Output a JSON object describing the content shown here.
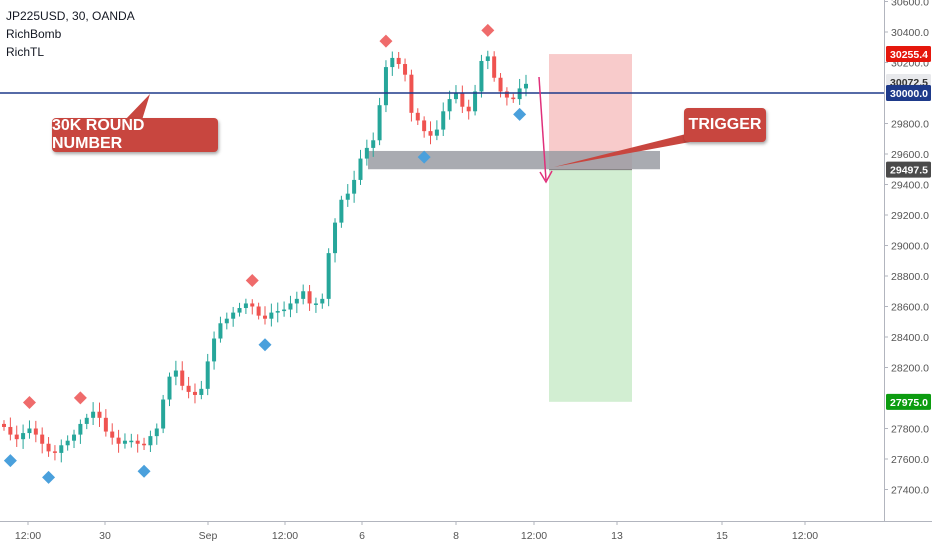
{
  "header": {
    "symbol_line": "JP225USD, 30, OANDA",
    "indicator_1": "RichBomb",
    "indicator_2": "RichTL"
  },
  "annotations": {
    "round_number_label": "30K ROUND NUMBER",
    "trigger_label": "TRIGGER"
  },
  "colors": {
    "candle_up": "#26a69a",
    "candle_down": "#ef5350",
    "bomb_up": "#ef6b6b",
    "bomb_down": "#4aa0dc",
    "horizontal_line": "#1e3a8a",
    "support_zone": "#9a9ca3",
    "stop_zone": "#f7c5c5",
    "target_zone": "#cdeccd",
    "callout_bg": "#c8463f",
    "arrow": "#e0307a",
    "price_label_red": "#e5170d",
    "price_label_green": "#0c9c10",
    "price_label_navy": "#1e3a8a",
    "price_label_gray": "#4a4a4a"
  },
  "chart_data": {
    "type": "candlestick",
    "symbol": "JP225USD",
    "timeframe": "30",
    "source": "OANDA",
    "x_tick_labels": [
      "12:00",
      "30",
      "Sep",
      "12:00",
      "6",
      "8",
      "12:00",
      "13",
      "15",
      "12:00"
    ],
    "y_tick_labels": [
      "30600.0",
      "30400.0",
      "30200.0",
      "29800.0",
      "29600.0",
      "29400.0",
      "29200.0",
      "29000.0",
      "28800.0",
      "28600.0",
      "28400.0",
      "28200.0",
      "27800.0",
      "27600.0",
      "27400.0"
    ],
    "ylim": [
      27250,
      30650
    ],
    "price_labels": [
      {
        "text": "30255.4",
        "value": 30255.4,
        "style": "red"
      },
      {
        "text": "30072.5",
        "value": 30072.5,
        "style": "light"
      },
      {
        "text": "30000.0",
        "value": 30000.0,
        "style": "navy"
      },
      {
        "text": "29497.5",
        "value": 29497.5,
        "style": "gray"
      },
      {
        "text": "27975.0",
        "value": 27975.0,
        "style": "green"
      }
    ],
    "horizontal_level": 30000,
    "support_zone": {
      "from": 29500,
      "to": 29620
    },
    "trade_setup": {
      "entry": 29497.5,
      "stop": 30255.4,
      "target": 27975.0
    },
    "close_prices": [
      27810,
      27760,
      27730,
      27770,
      27800,
      27760,
      27700,
      27650,
      27640,
      27690,
      27720,
      27760,
      27830,
      27870,
      27910,
      27870,
      27780,
      27740,
      27700,
      27720,
      27720,
      27700,
      27690,
      27750,
      27800,
      27990,
      28140,
      28180,
      28080,
      28040,
      28020,
      28060,
      28240,
      28390,
      28490,
      28520,
      28560,
      28590,
      28620,
      28600,
      28540,
      28520,
      28560,
      28570,
      28580,
      28620,
      28650,
      28700,
      28620,
      28620,
      28650,
      28950,
      29150,
      29300,
      29340,
      29430,
      29570,
      29640,
      29690,
      29920,
      30170,
      30230,
      30190,
      30120,
      29870,
      29820,
      29750,
      29720,
      29760,
      29880,
      29960,
      30000,
      29910,
      29880,
      30010,
      30210,
      30240,
      30100,
      30010,
      29970,
      29960,
      30030,
      30060
    ]
  }
}
